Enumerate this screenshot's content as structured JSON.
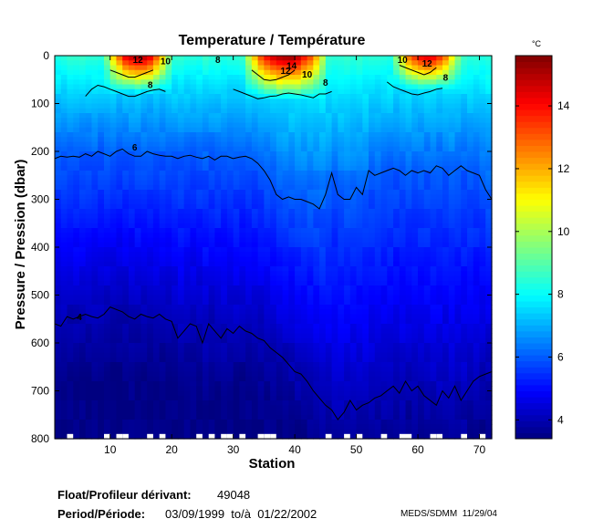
{
  "chart_data": {
    "type": "heatmap",
    "title": "Temperature / Température",
    "xlabel": "Station",
    "ylabel": "Pressure / Pression (dbar)",
    "xlim": [
      1,
      72
    ],
    "ylim": [
      0,
      800
    ],
    "x_ticks": [
      10,
      20,
      30,
      40,
      50,
      60,
      70
    ],
    "y_ticks": [
      0,
      100,
      200,
      300,
      400,
      500,
      600,
      700,
      800
    ],
    "colorbar": {
      "unit": "°C",
      "range": [
        3.4,
        15.6
      ],
      "ticks": [
        4,
        6,
        8,
        10,
        12,
        14
      ]
    },
    "contours": [
      {
        "level": 4,
        "label": "4",
        "depth_by_station": [
          560,
          565,
          545,
          550,
          545,
          540,
          545,
          548,
          540,
          525,
          530,
          535,
          545,
          550,
          540,
          545,
          548,
          540,
          550,
          555,
          590,
          575,
          560,
          565,
          600,
          560,
          575,
          590,
          570,
          580,
          565,
          575,
          580,
          590,
          595,
          610,
          620,
          630,
          645,
          660,
          665,
          680,
          700,
          715,
          730,
          740,
          760,
          745,
          720,
          740,
          730,
          725,
          715,
          710,
          700,
          690,
          705,
          680,
          700,
          690,
          710,
          720,
          730,
          700,
          715,
          690,
          720,
          700,
          680,
          670,
          665,
          660
        ]
      },
      {
        "level": 6,
        "label": "6",
        "depth_by_station": [
          215,
          210,
          212,
          210,
          212,
          205,
          210,
          200,
          205,
          210,
          200,
          195,
          205,
          210,
          210,
          200,
          205,
          208,
          210,
          210,
          215,
          210,
          208,
          212,
          215,
          210,
          218,
          210,
          210,
          215,
          212,
          210,
          215,
          225,
          240,
          260,
          290,
          300,
          295,
          300,
          300,
          305,
          310,
          320,
          290,
          245,
          290,
          300,
          300,
          275,
          290,
          240,
          250,
          245,
          240,
          235,
          240,
          250,
          240,
          245,
          240,
          245,
          230,
          235,
          250,
          240,
          230,
          240,
          245,
          250,
          280,
          300
        ]
      },
      {
        "level": 8,
        "label": "8",
        "depth_by_station": [
          null,
          null,
          null,
          null,
          null,
          85,
          70,
          62,
          65,
          70,
          75,
          80,
          85,
          85,
          80,
          75,
          72,
          70,
          75,
          null,
          null,
          null,
          null,
          null,
          null,
          null,
          null,
          null,
          null,
          70,
          75,
          80,
          85,
          90,
          88,
          85,
          84,
          80,
          78,
          80,
          82,
          85,
          88,
          80,
          80,
          75,
          null,
          null,
          null,
          null,
          null,
          null,
          null,
          null,
          55,
          65,
          70,
          75,
          80,
          82,
          78,
          75,
          70,
          68,
          null,
          null,
          null,
          null,
          null,
          null,
          null,
          null
        ]
      },
      {
        "level": 10,
        "label": "10",
        "depth_by_station": [
          null,
          null,
          null,
          null,
          null,
          null,
          null,
          null,
          null,
          30,
          35,
          40,
          45,
          45,
          40,
          35,
          30,
          null,
          null,
          null,
          null,
          null,
          null,
          null,
          null,
          null,
          null,
          null,
          null,
          null,
          null,
          null,
          30,
          40,
          50,
          52,
          50,
          45,
          40,
          30,
          null,
          null,
          null,
          null,
          null,
          null,
          null,
          null,
          null,
          null,
          null,
          null,
          null,
          null,
          null,
          null,
          20,
          25,
          30,
          35,
          40,
          35,
          25,
          null,
          null,
          null,
          null,
          null,
          null,
          null,
          null,
          null
        ]
      }
    ],
    "contour_labels": [
      {
        "text": "12",
        "station": 14.5,
        "pressure": 8
      },
      {
        "text": "10",
        "station": 19,
        "pressure": 10
      },
      {
        "text": "8",
        "station": 16.5,
        "pressure": 60
      },
      {
        "text": "6",
        "station": 14,
        "pressure": 190
      },
      {
        "text": "4",
        "station": 5,
        "pressure": 545
      },
      {
        "text": "8",
        "station": 27.5,
        "pressure": 8
      },
      {
        "text": "14",
        "station": 39.5,
        "pressure": 20
      },
      {
        "text": "12",
        "station": 38.5,
        "pressure": 30
      },
      {
        "text": "10",
        "station": 42,
        "pressure": 38
      },
      {
        "text": "8",
        "station": 45,
        "pressure": 55
      },
      {
        "text": "10",
        "station": 57.5,
        "pressure": 8
      },
      {
        "text": "12",
        "station": 61.5,
        "pressure": 15
      },
      {
        "text": "8",
        "station": 64.5,
        "pressure": 45
      }
    ],
    "warm_cores": [
      {
        "s0": 9,
        "s1": 19,
        "d": 60,
        "peak": 15.2,
        "sc": 14
      },
      {
        "s0": 31,
        "s1": 44,
        "d": 70,
        "peak": 15.5,
        "sc": 38
      },
      {
        "s0": 56,
        "s1": 66,
        "d": 55,
        "peak": 14.5,
        "sc": 61
      }
    ],
    "missing_profiles_at_bottom": [
      3,
      9,
      11,
      12,
      16,
      18,
      24,
      26,
      28,
      29,
      31,
      34,
      35,
      36,
      45,
      48,
      50,
      54,
      57,
      58,
      62,
      63,
      67,
      70
    ]
  },
  "info": {
    "float_label": "Float/Profileur dérivant:",
    "float_id": "49048",
    "period_label": "Period/Période:",
    "period_value": "03/09/1999  to/à  01/22/2002",
    "credit": "MEDS/SDMM  11/29/04"
  }
}
